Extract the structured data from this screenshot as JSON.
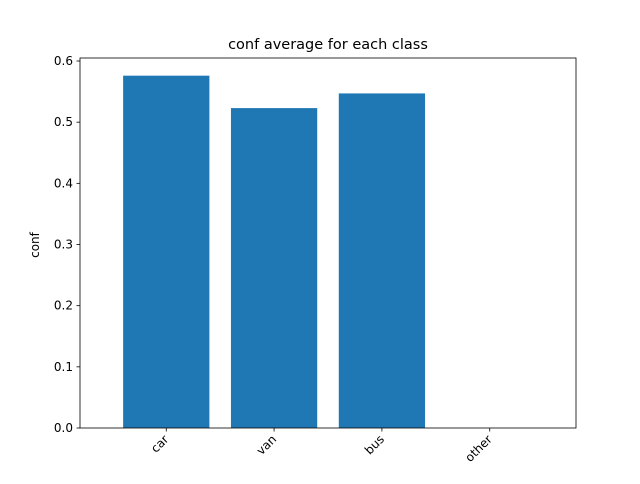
{
  "chart_data": {
    "type": "bar",
    "title": "conf average for each class",
    "xlabel": "",
    "ylabel": "conf",
    "categories": [
      "car",
      "van",
      "bus",
      "other"
    ],
    "values": [
      0.576,
      0.523,
      0.547,
      0.0
    ],
    "ylim": [
      0,
      0.6
    ],
    "yticks": [
      "0.0",
      "0.1",
      "0.2",
      "0.3",
      "0.4",
      "0.5",
      "0.6"
    ],
    "bar_color": "#1f77b4",
    "grid": false,
    "legend": "none"
  }
}
